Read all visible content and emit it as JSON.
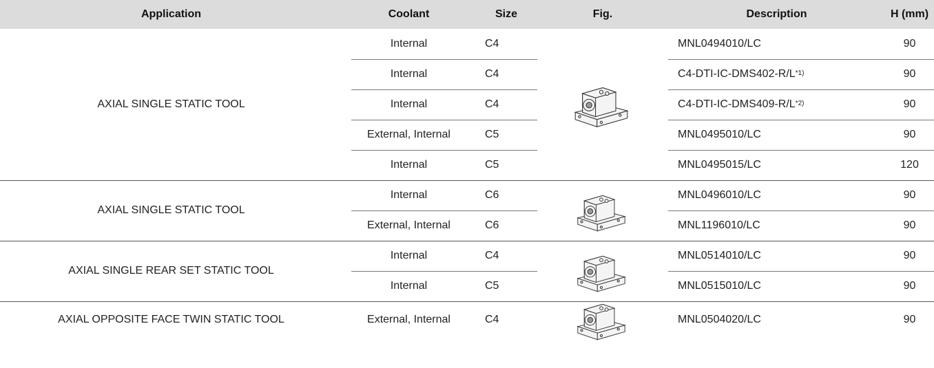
{
  "table": {
    "headers": [
      "Application",
      "Coolant",
      "Size",
      "Fig.",
      "Description",
      "H (mm)"
    ],
    "groups": [
      {
        "application": "AXIAL SINGLE STATIC TOOL",
        "rows": [
          {
            "coolant": "Internal",
            "size": "C4",
            "description": "MNL0494010/LC",
            "h": 90
          },
          {
            "coolant": "Internal",
            "size": "C4",
            "description": "C4-DTI-IC-DMS402-R/L",
            "note": "*1)",
            "h": 90
          },
          {
            "coolant": "Internal",
            "size": "C4",
            "description": "C4-DTI-IC-DMS409-R/L",
            "note": "*2)",
            "h": 90
          },
          {
            "coolant": "External, Internal",
            "size": "C5",
            "description": "MNL0495010/LC",
            "h": 90
          },
          {
            "coolant": "Internal",
            "size": "C5",
            "description": "MNL0495015/LC",
            "h": 120
          }
        ]
      },
      {
        "application": "AXIAL SINGLE STATIC TOOL",
        "rows": [
          {
            "coolant": "Internal",
            "size": "C6",
            "description": "MNL0496010/LC",
            "h": 90
          },
          {
            "coolant": "External, Internal",
            "size": "C6",
            "description": "MNL1196010/LC",
            "h": 90
          }
        ]
      },
      {
        "application": "AXIAL SINGLE REAR SET STATIC TOOL",
        "rows": [
          {
            "coolant": "Internal",
            "size": "C4",
            "description": "MNL0514010/LC",
            "h": 90
          },
          {
            "coolant": "Internal",
            "size": "C5",
            "description": "MNL0515010/LC",
            "h": 90
          }
        ]
      },
      {
        "application": "AXIAL OPPOSITE FACE TWIN STATIC TOOL",
        "rows": [
          {
            "coolant": "External, Internal",
            "size": "C4",
            "description": "MNL0504020/LC",
            "h": 90
          }
        ]
      }
    ]
  }
}
